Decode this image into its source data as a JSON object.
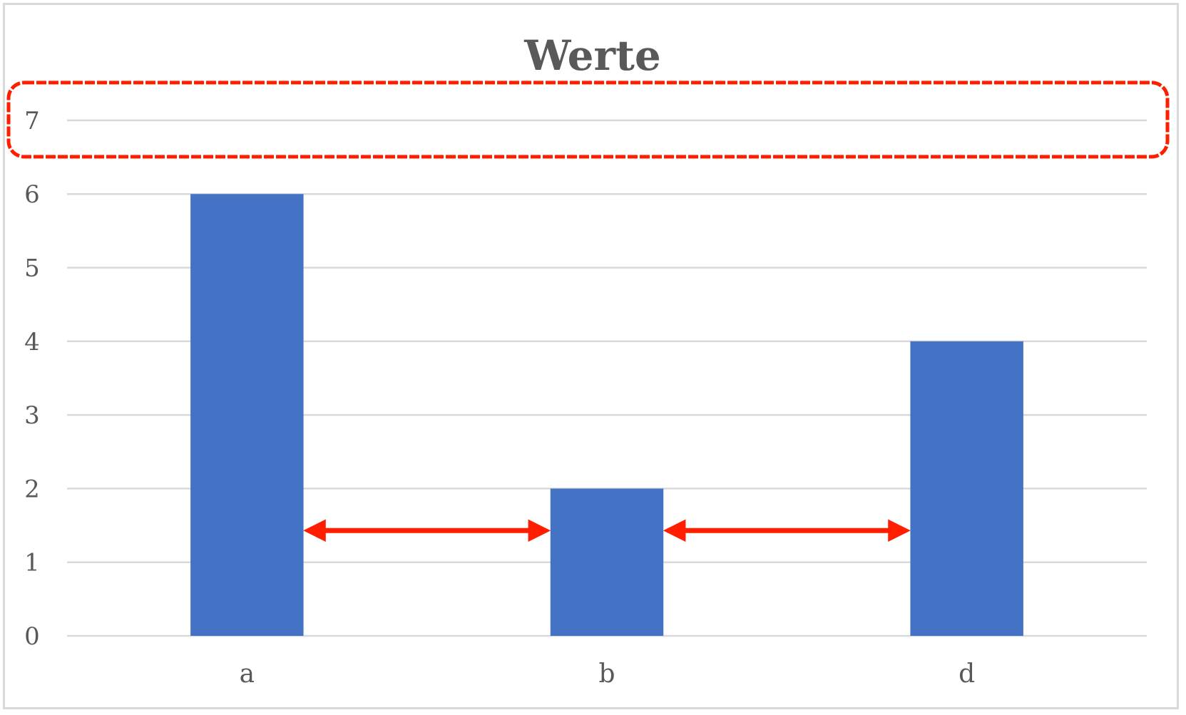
{
  "chart_data": {
    "type": "bar",
    "title": "Werte",
    "categories": [
      "a",
      "b",
      "d"
    ],
    "values": [
      6,
      2,
      4
    ],
    "ylim": [
      0,
      7
    ],
    "yticks": [
      "0",
      "1",
      "2",
      "3",
      "4",
      "5",
      "6",
      "7"
    ],
    "xlabel": "",
    "ylabel": "",
    "grid": true,
    "legend": "none",
    "bar_color": "#4472c4",
    "annotations": [
      {
        "type": "highlight-box",
        "target": "y-tick-7",
        "color": "#ff1e00"
      },
      {
        "type": "double-arrow",
        "between": [
          "a",
          "b"
        ],
        "color": "#ff1e00"
      },
      {
        "type": "double-arrow",
        "between": [
          "b",
          "d"
        ],
        "color": "#ff1e00"
      }
    ]
  }
}
